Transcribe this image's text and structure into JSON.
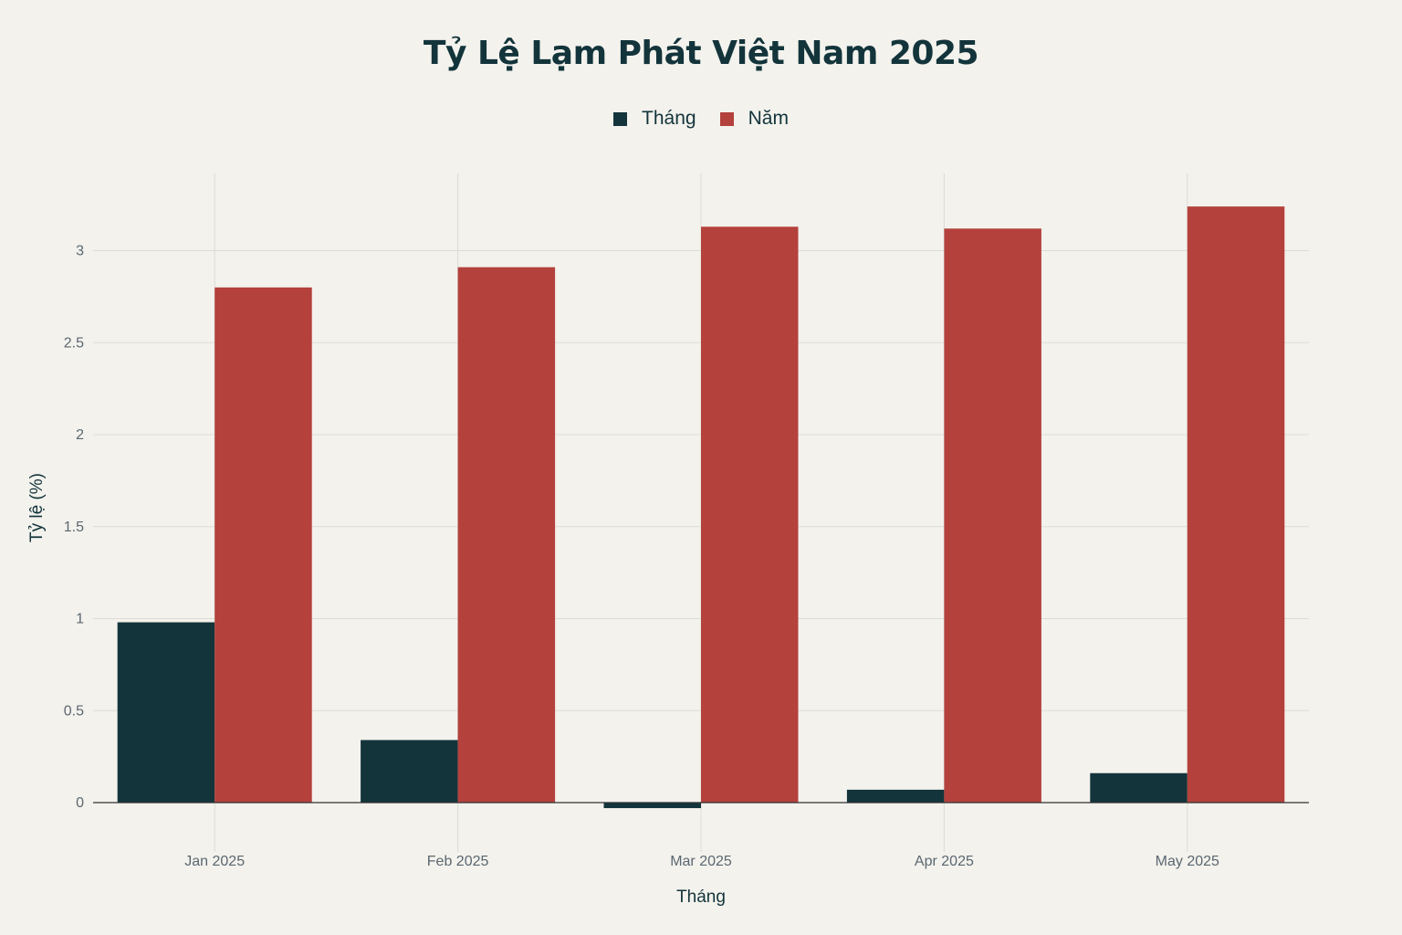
{
  "colors": {
    "background": "#f3f2ed",
    "grid": "#dcdcd6",
    "axis": "#333333",
    "series_month": "#13343b",
    "series_year": "#b4413c",
    "text": "#13343b",
    "tick": "#5b6770"
  },
  "chart_data": {
    "type": "bar",
    "title": "Tỷ Lệ Lạm Phát Việt Nam 2025",
    "xlabel": "Tháng",
    "ylabel": "Tỷ lệ (%)",
    "categories": [
      "Jan 2025",
      "Feb 2025",
      "Mar 2025",
      "Apr 2025",
      "May 2025"
    ],
    "series": [
      {
        "name": "Tháng",
        "values": [
          0.98,
          0.34,
          -0.03,
          0.07,
          0.16
        ]
      },
      {
        "name": "Năm",
        "values": [
          2.8,
          2.91,
          3.13,
          3.12,
          3.24
        ]
      }
    ],
    "ylim": [
      -0.03,
      3.42
    ],
    "yticks": [
      0,
      0.5,
      1,
      1.5,
      2,
      2.5,
      3
    ],
    "ytick_labels": [
      "0",
      "0.5",
      "1",
      "1.5",
      "2",
      "2.5",
      "3"
    ],
    "grid": true,
    "legend": "top-center"
  }
}
